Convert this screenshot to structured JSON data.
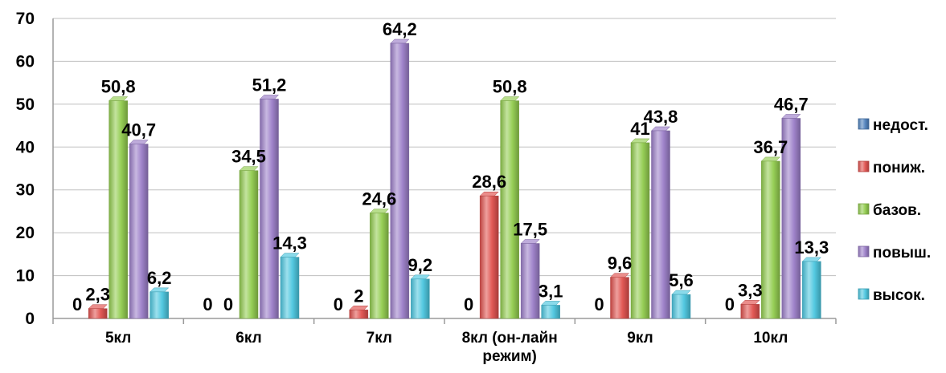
{
  "chart_data": {
    "type": "bar",
    "categories": [
      "5кл",
      "6кл",
      "7кл",
      "8кл (он-лайн режим)",
      "9кл",
      "10кл"
    ],
    "category_lines": [
      [
        "5кл"
      ],
      [
        "6кл"
      ],
      [
        "7кл"
      ],
      [
        "8кл (он-лайн",
        "режим)"
      ],
      [
        "9кл"
      ],
      [
        "10кл"
      ]
    ],
    "series": [
      {
        "name": "недост.",
        "values": [
          0,
          0,
          0,
          0,
          0,
          0
        ],
        "labels": [
          "0",
          "0",
          "0",
          "0",
          "0",
          "0"
        ],
        "color": "#4F81BD"
      },
      {
        "name": "пониж.",
        "values": [
          2.3,
          0,
          2,
          28.6,
          9.6,
          3.3
        ],
        "labels": [
          "2,3",
          "0",
          "2",
          "28,6",
          "9,6",
          "3,3"
        ],
        "color": "#E0504D"
      },
      {
        "name": "базов.",
        "values": [
          50.8,
          34.5,
          24.6,
          50.8,
          41,
          36.7
        ],
        "labels": [
          "50,8",
          "34,5",
          "24,6",
          "50,8",
          "41",
          "36,7"
        ],
        "color": "#92CC4E"
      },
      {
        "name": "повыш.",
        "values": [
          40.7,
          51.2,
          64.2,
          17.5,
          43.8,
          46.7
        ],
        "labels": [
          "40,7",
          "51,2",
          "64,2",
          "17,5",
          "43,8",
          "46,7"
        ],
        "color": "#9B7EC8"
      },
      {
        "name": "высок.",
        "values": [
          6.2,
          14.3,
          9.2,
          3.1,
          5.6,
          13.3
        ],
        "labels": [
          "6,2",
          "14,3",
          "9,2",
          "3,1",
          "5,6",
          "13,3"
        ],
        "color": "#4BC6DF"
      }
    ],
    "yticks": [
      "0",
      "10",
      "20",
      "30",
      "40",
      "50",
      "60",
      "70"
    ],
    "ylim": [
      0,
      70
    ],
    "grid": true,
    "legend_position": "right"
  }
}
